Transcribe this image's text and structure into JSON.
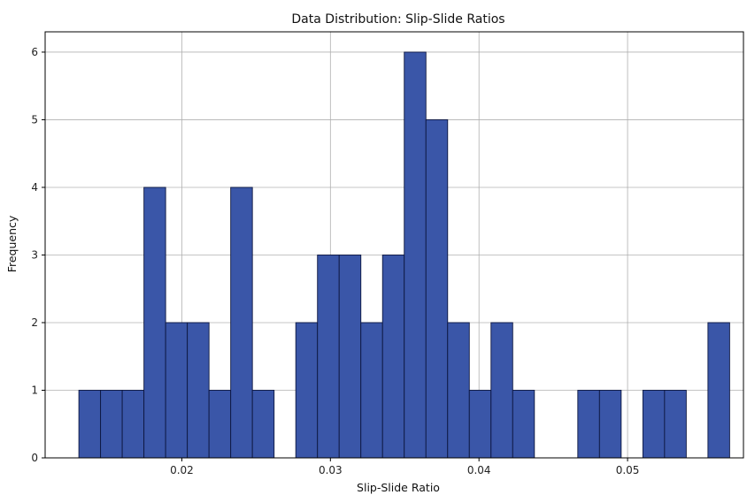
{
  "chart_data": {
    "type": "bar",
    "title": "Data Distribution: Slip-Slide Ratios",
    "xlabel": "Slip-Slide Ratio",
    "ylabel": "Frequency",
    "bar_color": "#3a56a8",
    "edge_color": "#0d1740",
    "grid": true,
    "xlim": [
      0.0108,
      0.0578
    ],
    "ylim": [
      0,
      6.3
    ],
    "x_ticks": [
      0.02,
      0.03,
      0.04,
      0.05
    ],
    "x_tick_labels": [
      "0.02",
      "0.03",
      "0.04",
      "0.05"
    ],
    "y_ticks": [
      0,
      1,
      2,
      3,
      4,
      5,
      6
    ],
    "y_tick_labels": [
      "0",
      "1",
      "2",
      "3",
      "4",
      "5",
      "6"
    ],
    "bin_width": 0.00146,
    "bins": [
      {
        "x0": 0.01307,
        "count": 1
      },
      {
        "x0": 0.01453,
        "count": 1
      },
      {
        "x0": 0.01599,
        "count": 1
      },
      {
        "x0": 0.01745,
        "count": 4
      },
      {
        "x0": 0.01891,
        "count": 2
      },
      {
        "x0": 0.02037,
        "count": 2
      },
      {
        "x0": 0.02183,
        "count": 1
      },
      {
        "x0": 0.02329,
        "count": 4
      },
      {
        "x0": 0.02475,
        "count": 1
      },
      {
        "x0": 0.02621,
        "count": 0
      },
      {
        "x0": 0.02767,
        "count": 2
      },
      {
        "x0": 0.02913,
        "count": 3
      },
      {
        "x0": 0.03059,
        "count": 3
      },
      {
        "x0": 0.03205,
        "count": 2
      },
      {
        "x0": 0.03351,
        "count": 3
      },
      {
        "x0": 0.03497,
        "count": 6
      },
      {
        "x0": 0.03643,
        "count": 5
      },
      {
        "x0": 0.03789,
        "count": 2
      },
      {
        "x0": 0.03935,
        "count": 1
      },
      {
        "x0": 0.04081,
        "count": 2
      },
      {
        "x0": 0.04227,
        "count": 1
      },
      {
        "x0": 0.04373,
        "count": 0
      },
      {
        "x0": 0.04519,
        "count": 0
      },
      {
        "x0": 0.04665,
        "count": 1
      },
      {
        "x0": 0.04811,
        "count": 1
      },
      {
        "x0": 0.04957,
        "count": 0
      },
      {
        "x0": 0.05103,
        "count": 1
      },
      {
        "x0": 0.05249,
        "count": 1
      },
      {
        "x0": 0.05395,
        "count": 0
      },
      {
        "x0": 0.05541,
        "count": 2
      }
    ]
  }
}
